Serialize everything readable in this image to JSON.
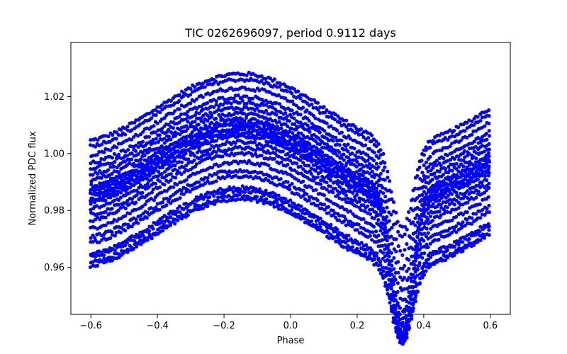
{
  "chart_data": {
    "type": "scatter",
    "title": "TIC 0262696097, period 0.9112 days",
    "xlabel": "Phase",
    "ylabel": "Normalized PDC flux",
    "xlim": [
      -0.66,
      0.66
    ],
    "ylim": [
      0.9435,
      1.039
    ],
    "xticks": [
      -0.6,
      -0.4,
      -0.2,
      0.0,
      0.2,
      0.4,
      0.6
    ],
    "xtick_labels": [
      "−0.6",
      "−0.4",
      "−0.2",
      "0.0",
      "0.2",
      "0.4",
      "0.6"
    ],
    "yticks": [
      0.96,
      0.98,
      1.0,
      1.02
    ],
    "ytick_labels": [
      "0.96",
      "0.98",
      "1.00",
      "1.02"
    ],
    "marker_color": "#0000ff",
    "series": [
      {
        "name": "PDC flux",
        "model": {
          "phase_range": [
            -0.6,
            0.6
          ],
          "baseline_peak_phase": -0.15,
          "baseline_amplitude": 0.012,
          "eclipse_center_phase": 0.335,
          "eclipse_depth": 0.047,
          "eclipse_halfwidth": 0.065,
          "segment_offsets": [
            0.02,
            0.018,
            0.015,
            0.012,
            0.01,
            0.008,
            0.006,
            0.004,
            0.003,
            0.002,
            0.001,
            0.0,
            -0.001,
            -0.002,
            -0.004,
            -0.006,
            -0.008,
            -0.011,
            -0.014,
            -0.016,
            -0.02,
            -0.021,
            -0.023,
            -0.024
          ]
        }
      }
    ]
  }
}
